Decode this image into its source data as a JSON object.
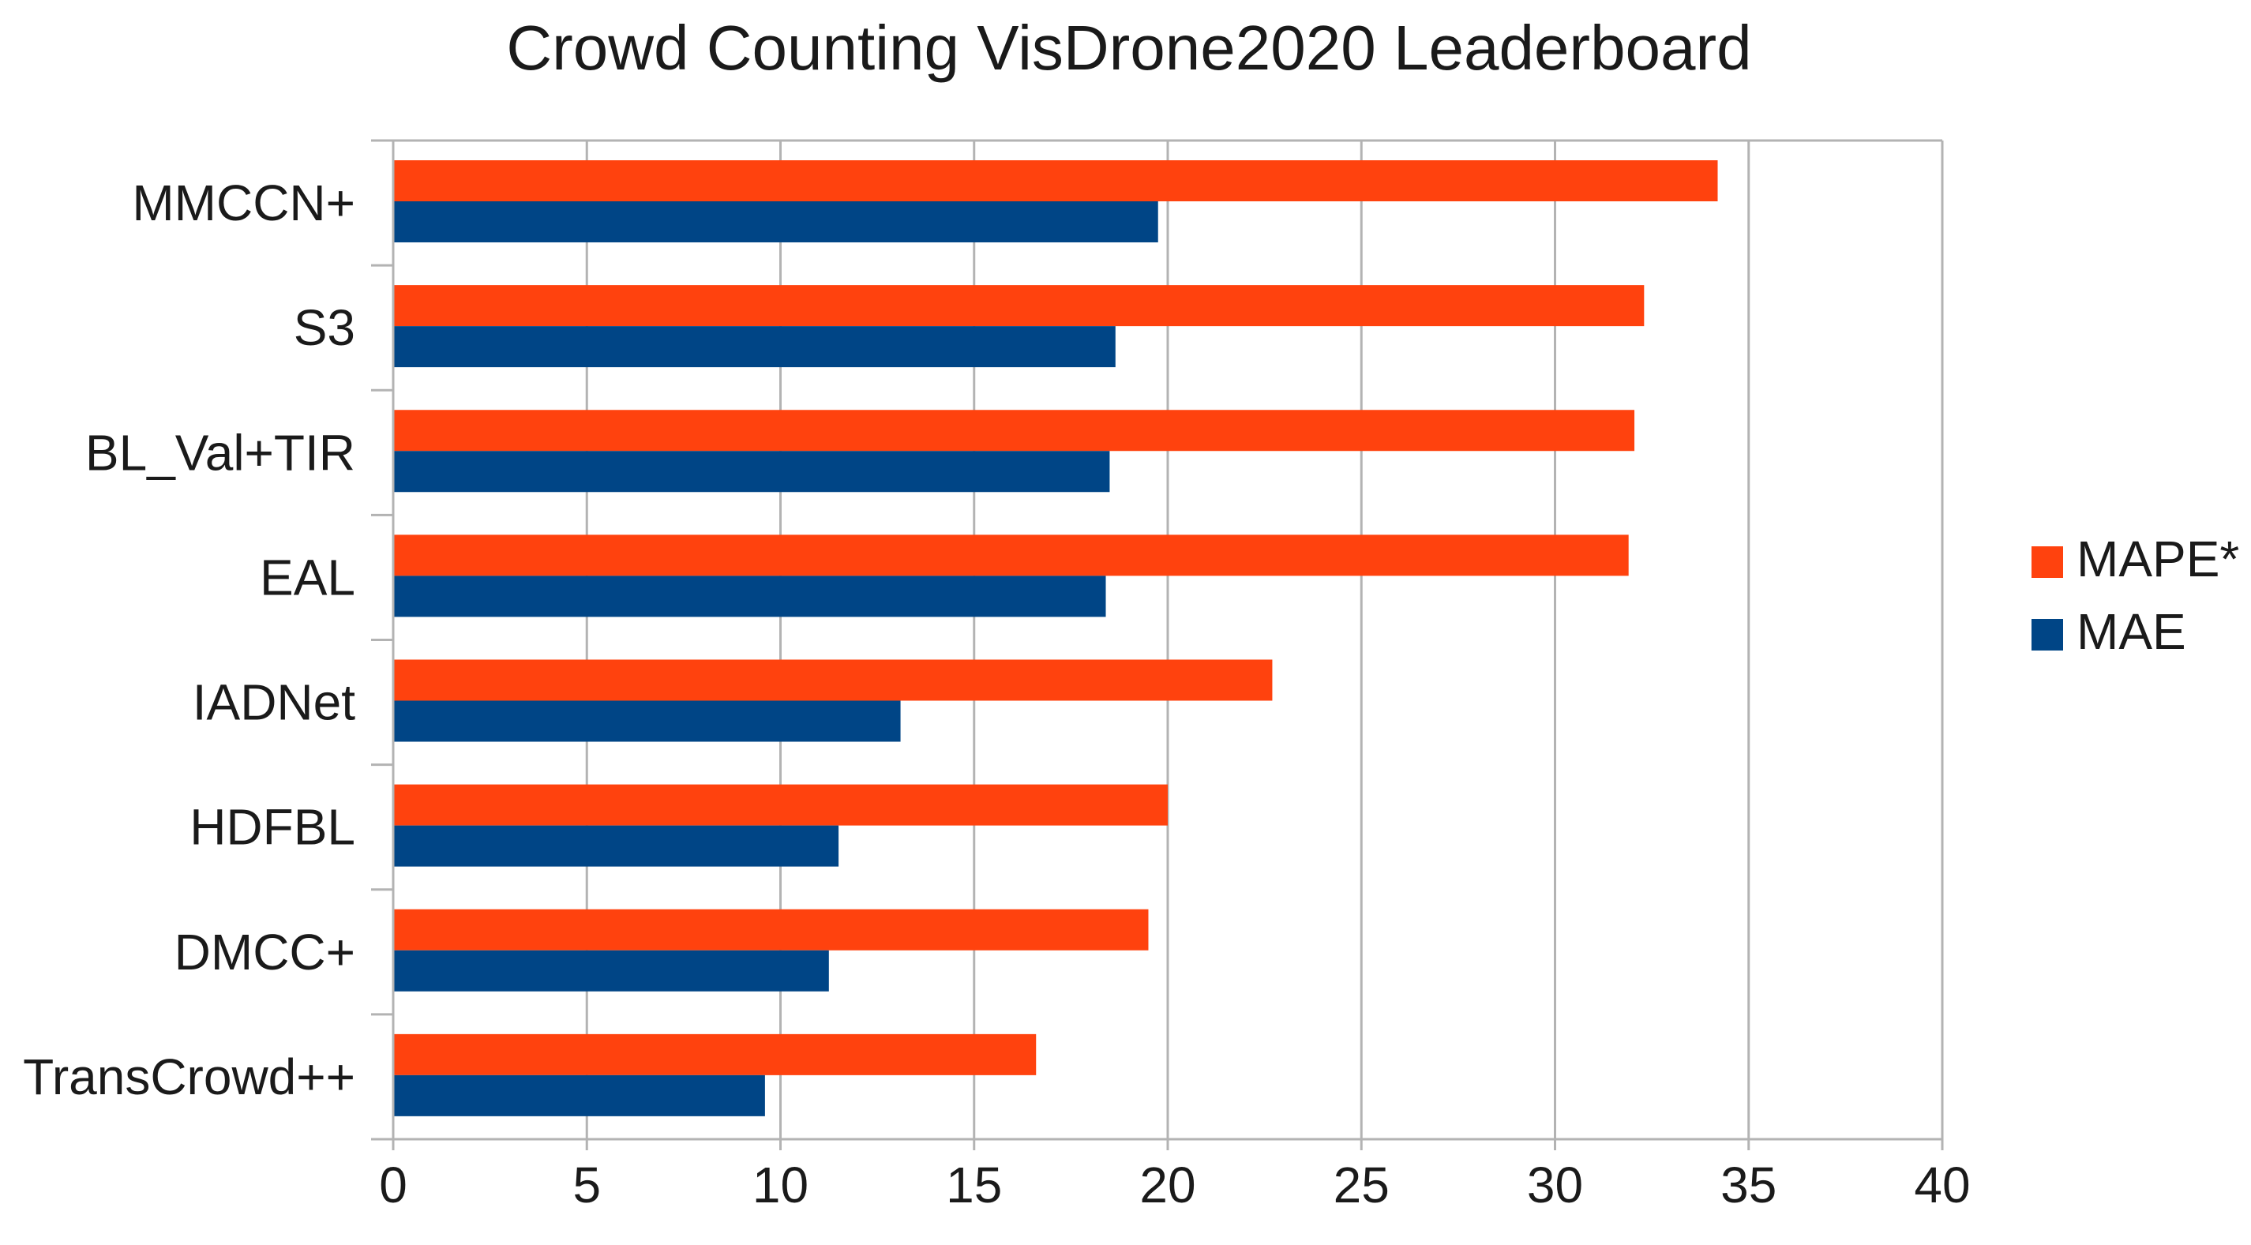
{
  "chart_data": {
    "type": "bar",
    "orientation": "horizontal",
    "title": "Crowd Counting VisDrone2020 Leaderboard",
    "xlabel": "",
    "ylabel": "",
    "categories": [
      "MMCCN+",
      "S3",
      "BL_Val+TIR",
      "EAL",
      "IADNet",
      "HDFBL",
      "DMCC+",
      "TransCrowd++"
    ],
    "series": [
      {
        "name": "MAPE*",
        "color": "#ff420e",
        "values": [
          34.2,
          32.3,
          32.05,
          31.9,
          22.7,
          20.0,
          19.5,
          16.6
        ]
      },
      {
        "name": "MAE",
        "color": "#004586",
        "values": [
          19.75,
          18.65,
          18.5,
          18.4,
          13.1,
          11.5,
          11.25,
          9.6
        ]
      }
    ],
    "xlim": [
      0,
      40
    ],
    "xticks": [
      "0",
      "5",
      "10",
      "15",
      "20",
      "25",
      "30",
      "35",
      "40"
    ],
    "grid": true,
    "legend_position": "right"
  }
}
